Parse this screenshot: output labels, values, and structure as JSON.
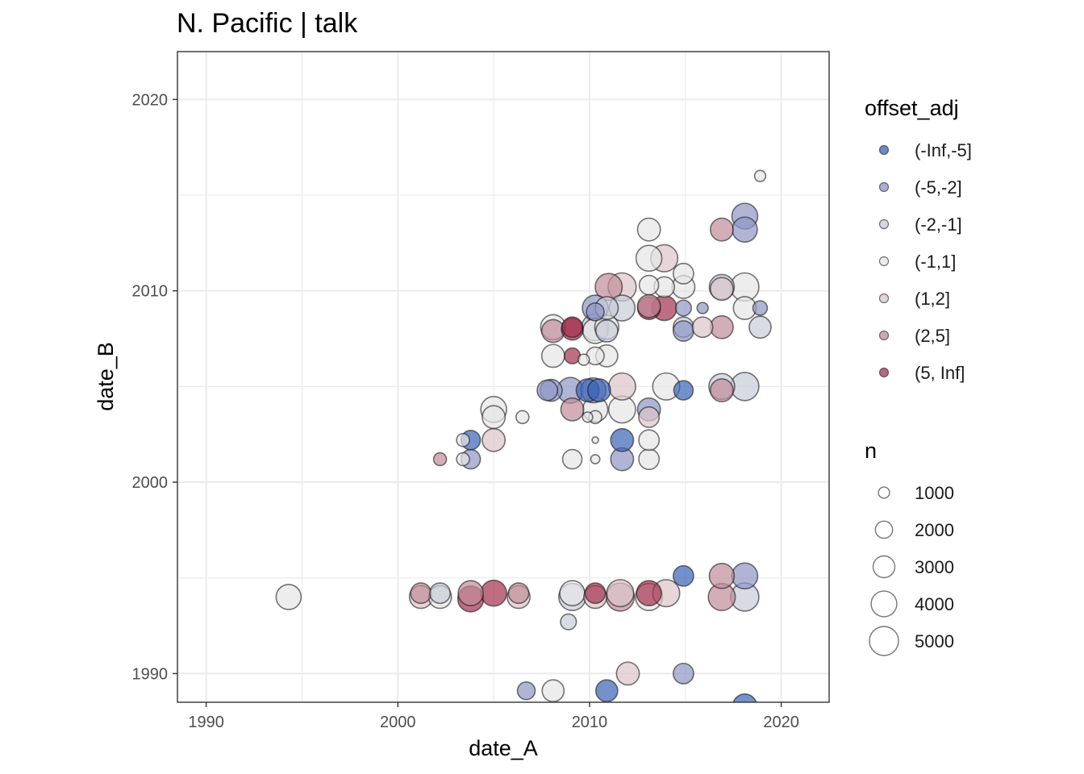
{
  "chart_data": {
    "type": "scatter",
    "title": "N. Pacific | talk",
    "xlabel": "date_A",
    "ylabel": "date_B",
    "xlim": [
      1988.5,
      2022.5
    ],
    "ylim": [
      1988.5,
      2022.5
    ],
    "x_ticks": [
      1990,
      2000,
      2010,
      2020
    ],
    "y_ticks": [
      1990,
      2000,
      2010,
      2020
    ],
    "x_tick_labels": [
      "1990",
      "2000",
      "2010",
      "2020"
    ],
    "y_tick_labels": [
      "1990",
      "2000",
      "2010",
      "2020"
    ],
    "grid": true,
    "legend_color": {
      "title": "offset_adj",
      "entries": [
        {
          "label": "(-Inf,-5]",
          "color": "#3a62b5"
        },
        {
          "label": "(-5,-2]",
          "color": "#8e95c5"
        },
        {
          "label": "(-2,-1]",
          "color": "#c8cad9"
        },
        {
          "label": "(-1,1]",
          "color": "#e5e5e5"
        },
        {
          "label": "(1,2]",
          "color": "#dcc5cb"
        },
        {
          "label": "(2,5]",
          "color": "#c08b9a"
        },
        {
          "label": "(5, Inf]",
          "color": "#a3314f"
        }
      ]
    },
    "legend_size": {
      "title": "n",
      "entries": [
        {
          "label": "1000",
          "value": 1000
        },
        {
          "label": "2000",
          "value": 2000
        },
        {
          "label": "3000",
          "value": 3000
        },
        {
          "label": "4000",
          "value": 4000
        },
        {
          "label": "5000",
          "value": 5000
        }
      ]
    },
    "points": [
      {
        "x": 1994.3,
        "y": 1994.0,
        "n": 3000,
        "offset": "(-1,1]"
      },
      {
        "x": 2001.2,
        "y": 1994.2,
        "n": 2000,
        "offset": "(2,5]"
      },
      {
        "x": 2001.2,
        "y": 1994.0,
        "n": 2500,
        "offset": "(1,2]"
      },
      {
        "x": 2002.2,
        "y": 1994.2,
        "n": 2000,
        "offset": "(-2,-1]"
      },
      {
        "x": 2002.2,
        "y": 1994.0,
        "n": 2500,
        "offset": "(-1,1]"
      },
      {
        "x": 2003.8,
        "y": 1994.2,
        "n": 3000,
        "offset": "(2,5]"
      },
      {
        "x": 2003.8,
        "y": 1993.9,
        "n": 3200,
        "offset": "(5, Inf]"
      },
      {
        "x": 2005.0,
        "y": 1994.2,
        "n": 3200,
        "offset": "(5, Inf]"
      },
      {
        "x": 2006.3,
        "y": 1994.2,
        "n": 2000,
        "offset": "(2,5]"
      },
      {
        "x": 2006.3,
        "y": 1994.0,
        "n": 2500,
        "offset": "(1,2]"
      },
      {
        "x": 2009.1,
        "y": 1994.2,
        "n": 3000,
        "offset": "(-1,1]"
      },
      {
        "x": 2009.1,
        "y": 1994.0,
        "n": 3500,
        "offset": "(-2,-1]"
      },
      {
        "x": 2010.3,
        "y": 1994.2,
        "n": 2000,
        "offset": "(5, Inf]"
      },
      {
        "x": 2010.3,
        "y": 1994.0,
        "n": 2500,
        "offset": "(1,2]"
      },
      {
        "x": 2011.6,
        "y": 1994.2,
        "n": 3500,
        "offset": "(1,2]"
      },
      {
        "x": 2011.6,
        "y": 1994.0,
        "n": 3800,
        "offset": "(2,5]"
      },
      {
        "x": 2013.1,
        "y": 1994.2,
        "n": 3000,
        "offset": "(5, Inf]"
      },
      {
        "x": 2013.1,
        "y": 1994.0,
        "n": 3500,
        "offset": "(-1,1]"
      },
      {
        "x": 2014.0,
        "y": 1994.2,
        "n": 3500,
        "offset": "(1,2]"
      },
      {
        "x": 2016.9,
        "y": 1995.1,
        "n": 3000,
        "offset": "(2,5]"
      },
      {
        "x": 2016.9,
        "y": 1994.0,
        "n": 3500,
        "offset": "(2,5]"
      },
      {
        "x": 2018.1,
        "y": 1995.1,
        "n": 3200,
        "offset": "(-5,-2]"
      },
      {
        "x": 2018.1,
        "y": 1994.0,
        "n": 3800,
        "offset": "(-2,-1]"
      },
      {
        "x": 2014.9,
        "y": 1995.1,
        "n": 2000,
        "offset": "(-Inf,-5]"
      },
      {
        "x": 2008.9,
        "y": 1992.7,
        "n": 1200,
        "offset": "(-2,-1]"
      },
      {
        "x": 2006.7,
        "y": 1989.1,
        "n": 1500,
        "offset": "(-5,-2]"
      },
      {
        "x": 2008.1,
        "y": 1989.1,
        "n": 2300,
        "offset": "(-1,1]"
      },
      {
        "x": 2010.9,
        "y": 1989.1,
        "n": 2300,
        "offset": "(-Inf,-5]"
      },
      {
        "x": 2012.0,
        "y": 1990.0,
        "n": 2500,
        "offset": "(1,2]"
      },
      {
        "x": 2014.9,
        "y": 1990.0,
        "n": 2000,
        "offset": "(-5,-2]"
      },
      {
        "x": 2018.1,
        "y": 1988.3,
        "n": 2800,
        "offset": "(-Inf,-5]"
      },
      {
        "x": 2002.2,
        "y": 2001.2,
        "n": 800,
        "offset": "(2,5]"
      },
      {
        "x": 2003.4,
        "y": 2001.2,
        "n": 800,
        "offset": "(-1,1]"
      },
      {
        "x": 2003.8,
        "y": 2001.2,
        "n": 1800,
        "offset": "(-5,-2]"
      },
      {
        "x": 2003.4,
        "y": 2002.2,
        "n": 800,
        "offset": "(-1,1]"
      },
      {
        "x": 2003.8,
        "y": 2002.2,
        "n": 1800,
        "offset": "(-Inf,-5]"
      },
      {
        "x": 2005.0,
        "y": 2002.2,
        "n": 2500,
        "offset": "(1,2]"
      },
      {
        "x": 2005.0,
        "y": 2003.4,
        "n": 2500,
        "offset": "(-1,1]"
      },
      {
        "x": 2005.0,
        "y": 2003.8,
        "n": 3200,
        "offset": "(-1,1]"
      },
      {
        "x": 2006.5,
        "y": 2003.4,
        "n": 800,
        "offset": "(-1,1]"
      },
      {
        "x": 2009.1,
        "y": 2001.2,
        "n": 1800,
        "offset": "(-1,1]"
      },
      {
        "x": 2010.3,
        "y": 2001.2,
        "n": 400,
        "offset": "(-1,1]"
      },
      {
        "x": 2010.3,
        "y": 2002.2,
        "n": 200,
        "offset": "(-1,1]"
      },
      {
        "x": 2011.7,
        "y": 2001.2,
        "n": 2500,
        "offset": "(-5,-2]"
      },
      {
        "x": 2011.7,
        "y": 2002.2,
        "n": 2500,
        "offset": "(-Inf,-5]"
      },
      {
        "x": 2013.1,
        "y": 2001.2,
        "n": 2000,
        "offset": "(-1,1]"
      },
      {
        "x": 2013.1,
        "y": 2002.2,
        "n": 2000,
        "offset": "(-1,1]"
      },
      {
        "x": 2013.1,
        "y": 2003.4,
        "n": 2000,
        "offset": "(1,2]"
      },
      {
        "x": 2013.1,
        "y": 2003.8,
        "n": 2500,
        "offset": "(-5,-2]"
      },
      {
        "x": 2009.9,
        "y": 2003.4,
        "n": 500,
        "offset": "(-1,1]"
      },
      {
        "x": 2010.3,
        "y": 2003.4,
        "n": 800,
        "offset": "(-1,1]"
      },
      {
        "x": 2009.1,
        "y": 2003.8,
        "n": 2500,
        "offset": "(2,5]"
      },
      {
        "x": 2010.3,
        "y": 2003.8,
        "n": 3000,
        "offset": "(-1,1]"
      },
      {
        "x": 2011.7,
        "y": 2003.8,
        "n": 3500,
        "offset": "(-1,1]"
      },
      {
        "x": 2007.8,
        "y": 2004.8,
        "n": 2000,
        "offset": "(-5,-2]"
      },
      {
        "x": 2008.0,
        "y": 2004.8,
        "n": 2300,
        "offset": "(-5,-2]"
      },
      {
        "x": 2009.0,
        "y": 2004.8,
        "n": 3200,
        "offset": "(-5,-2]"
      },
      {
        "x": 2009.9,
        "y": 2004.8,
        "n": 2500,
        "offset": "(-Inf,-5]"
      },
      {
        "x": 2010.2,
        "y": 2004.8,
        "n": 3000,
        "offset": "(-5,-2]"
      },
      {
        "x": 2010.5,
        "y": 2004.8,
        "n": 2500,
        "offset": "(-Inf,-5]"
      },
      {
        "x": 2011.7,
        "y": 2005.0,
        "n": 3500,
        "offset": "(1,2]"
      },
      {
        "x": 2014.0,
        "y": 2005.0,
        "n": 3500,
        "offset": "(-1,1]"
      },
      {
        "x": 2014.9,
        "y": 2004.8,
        "n": 1800,
        "offset": "(-Inf,-5]"
      },
      {
        "x": 2016.9,
        "y": 2005.0,
        "n": 3200,
        "offset": "(-2,-1]"
      },
      {
        "x": 2016.9,
        "y": 2004.8,
        "n": 2500,
        "offset": "(2,5]"
      },
      {
        "x": 2018.1,
        "y": 2005.0,
        "n": 3800,
        "offset": "(-2,-1]"
      },
      {
        "x": 2008.1,
        "y": 2006.6,
        "n": 2500,
        "offset": "(-1,1]"
      },
      {
        "x": 2009.1,
        "y": 2006.6,
        "n": 1200,
        "offset": "(5, Inf]"
      },
      {
        "x": 2009.7,
        "y": 2006.4,
        "n": 600,
        "offset": "(-1,1]"
      },
      {
        "x": 2010.3,
        "y": 2006.6,
        "n": 1500,
        "offset": "(-1,1]"
      },
      {
        "x": 2010.9,
        "y": 2006.6,
        "n": 2300,
        "offset": "(-1,1]"
      },
      {
        "x": 2008.1,
        "y": 2008.1,
        "n": 3000,
        "offset": "(-1,1]"
      },
      {
        "x": 2008.1,
        "y": 2007.9,
        "n": 2500,
        "offset": "(2,5]"
      },
      {
        "x": 2009.1,
        "y": 2008.1,
        "n": 2000,
        "offset": "(5, Inf]"
      },
      {
        "x": 2009.1,
        "y": 2008.0,
        "n": 2300,
        "offset": "(5, Inf]"
      },
      {
        "x": 2010.3,
        "y": 2008.1,
        "n": 3500,
        "offset": "(-2,-1]"
      },
      {
        "x": 2010.3,
        "y": 2007.9,
        "n": 3000,
        "offset": "(-1,1]"
      },
      {
        "x": 2010.9,
        "y": 2008.1,
        "n": 2800,
        "offset": "(-1,1]"
      },
      {
        "x": 2010.9,
        "y": 2007.9,
        "n": 2300,
        "offset": "(-2,-1]"
      },
      {
        "x": 2010.3,
        "y": 2009.1,
        "n": 3200,
        "offset": "(-5,-2]"
      },
      {
        "x": 2010.3,
        "y": 2008.9,
        "n": 1500,
        "offset": "(-5,-2]"
      },
      {
        "x": 2010.9,
        "y": 2009.1,
        "n": 2500,
        "offset": "(-2,-1]"
      },
      {
        "x": 2011.7,
        "y": 2009.1,
        "n": 3200,
        "offset": "(-2,-1]"
      },
      {
        "x": 2011.0,
        "y": 2010.2,
        "n": 3500,
        "offset": "(2,5]"
      },
      {
        "x": 2011.7,
        "y": 2010.2,
        "n": 3800,
        "offset": "(1,2]"
      },
      {
        "x": 2013.1,
        "y": 2010.3,
        "n": 1800,
        "offset": "(-1,1]"
      },
      {
        "x": 2013.1,
        "y": 2009.1,
        "n": 2500,
        "offset": "(5, Inf]"
      },
      {
        "x": 2013.1,
        "y": 2009.2,
        "n": 2500,
        "offset": "(2,5]"
      },
      {
        "x": 2013.9,
        "y": 2009.1,
        "n": 3000,
        "offset": "(5, Inf]"
      },
      {
        "x": 2013.9,
        "y": 2010.2,
        "n": 2000,
        "offset": "(-1,1]"
      },
      {
        "x": 2014.9,
        "y": 2010.2,
        "n": 2500,
        "offset": "(-1,1]"
      },
      {
        "x": 2014.9,
        "y": 2010.9,
        "n": 2000,
        "offset": "(-1,1]"
      },
      {
        "x": 2014.9,
        "y": 2009.1,
        "n": 1200,
        "offset": "(-5,-2]"
      },
      {
        "x": 2014.9,
        "y": 2008.1,
        "n": 2000,
        "offset": "(-2,-1]"
      },
      {
        "x": 2014.9,
        "y": 2007.9,
        "n": 2000,
        "offset": "(-5,-2]"
      },
      {
        "x": 2015.9,
        "y": 2009.1,
        "n": 600,
        "offset": "(-5,-2]"
      },
      {
        "x": 2015.9,
        "y": 2008.1,
        "n": 2000,
        "offset": "(1,2]"
      },
      {
        "x": 2016.9,
        "y": 2008.1,
        "n": 2500,
        "offset": "(2,5]"
      },
      {
        "x": 2016.9,
        "y": 2010.2,
        "n": 3000,
        "offset": "(-2,-1]"
      },
      {
        "x": 2016.9,
        "y": 2010.1,
        "n": 2500,
        "offset": "(1,2]"
      },
      {
        "x": 2018.1,
        "y": 2010.2,
        "n": 3800,
        "offset": "(-1,1]"
      },
      {
        "x": 2018.1,
        "y": 2009.1,
        "n": 2500,
        "offset": "(-1,1]"
      },
      {
        "x": 2018.9,
        "y": 2009.1,
        "n": 1000,
        "offset": "(-5,-2]"
      },
      {
        "x": 2018.9,
        "y": 2008.1,
        "n": 2300,
        "offset": "(-2,-1]"
      },
      {
        "x": 2013.1,
        "y": 2011.7,
        "n": 3200,
        "offset": "(-1,1]"
      },
      {
        "x": 2013.9,
        "y": 2011.7,
        "n": 3500,
        "offset": "(1,2]"
      },
      {
        "x": 2013.1,
        "y": 2013.2,
        "n": 2500,
        "offset": "(-1,1]"
      },
      {
        "x": 2016.9,
        "y": 2013.2,
        "n": 2500,
        "offset": "(2,5]"
      },
      {
        "x": 2018.1,
        "y": 2013.2,
        "n": 3000,
        "offset": "(-5,-2]"
      },
      {
        "x": 2018.1,
        "y": 2013.9,
        "n": 3200,
        "offset": "(-5,-2]"
      },
      {
        "x": 2018.9,
        "y": 2016.0,
        "n": 600,
        "offset": "(-1,1]"
      }
    ]
  }
}
